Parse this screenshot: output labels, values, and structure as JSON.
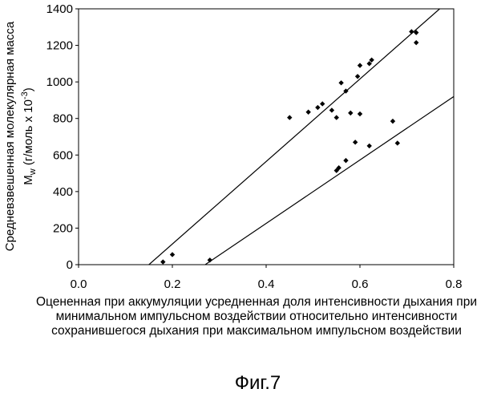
{
  "chart_data": {
    "type": "scatter",
    "xlabel": "Оцененная при аккумуляции усредненная доля интенсивности дыхания при минимальном импульсном воздействии относительно интенсивности сохранившегося дыхания при максимальном импульсном воздействии",
    "ylabel_line1": "Средневзвешенная молекулярная масса",
    "ylabel_line2_main": "M",
    "ylabel_line2_sub": "w",
    "ylabel_line2_rest": " (г/моль x 10",
    "ylabel_line2_sup": "-3",
    "ylabel_line2_end": ")",
    "xlim": [
      0.0,
      0.8
    ],
    "ylim": [
      0,
      1400
    ],
    "x_ticks": [
      "0.0",
      "0.2",
      "0.4",
      "0.6",
      "0.8"
    ],
    "y_ticks": [
      "0",
      "200",
      "400",
      "600",
      "800",
      "1000",
      "1200",
      "1400"
    ],
    "grid": false,
    "points": [
      {
        "x": 0.18,
        "y": 15
      },
      {
        "x": 0.2,
        "y": 55
      },
      {
        "x": 0.28,
        "y": 25
      },
      {
        "x": 0.45,
        "y": 805
      },
      {
        "x": 0.49,
        "y": 835
      },
      {
        "x": 0.51,
        "y": 860
      },
      {
        "x": 0.52,
        "y": 880
      },
      {
        "x": 0.54,
        "y": 845
      },
      {
        "x": 0.55,
        "y": 805
      },
      {
        "x": 0.56,
        "y": 995
      },
      {
        "x": 0.57,
        "y": 950
      },
      {
        "x": 0.58,
        "y": 830
      },
      {
        "x": 0.55,
        "y": 515
      },
      {
        "x": 0.555,
        "y": 530
      },
      {
        "x": 0.57,
        "y": 570
      },
      {
        "x": 0.59,
        "y": 670
      },
      {
        "x": 0.6,
        "y": 825
      },
      {
        "x": 0.595,
        "y": 1030
      },
      {
        "x": 0.6,
        "y": 1090
      },
      {
        "x": 0.62,
        "y": 1100
      },
      {
        "x": 0.625,
        "y": 1120
      },
      {
        "x": 0.62,
        "y": 650
      },
      {
        "x": 0.67,
        "y": 785
      },
      {
        "x": 0.68,
        "y": 665
      },
      {
        "x": 0.71,
        "y": 1275
      },
      {
        "x": 0.72,
        "y": 1270
      },
      {
        "x": 0.72,
        "y": 1215
      }
    ],
    "lines": [
      {
        "x1": 0.15,
        "y1": 0,
        "x2": 0.77,
        "y2": 1400
      },
      {
        "x1": 0.27,
        "y1": 0,
        "x2": 0.8,
        "y2": 920
      }
    ]
  },
  "caption": "Фиг.7"
}
